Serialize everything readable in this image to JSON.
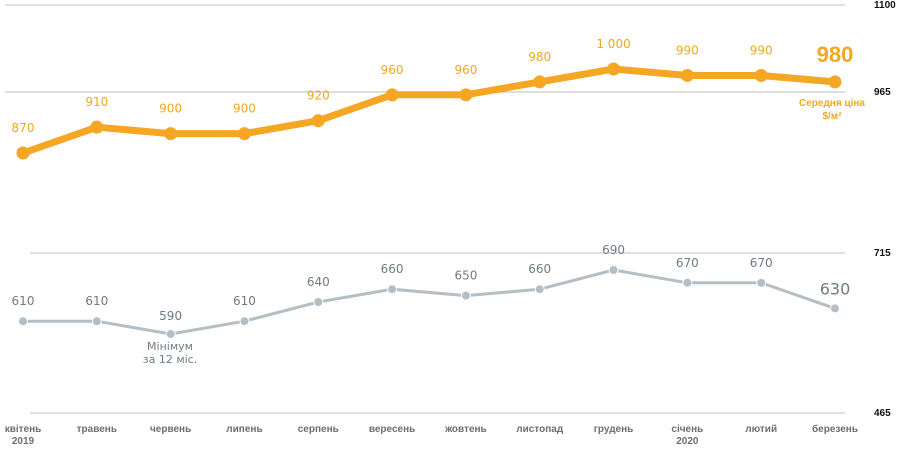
{
  "chart_data": {
    "type": "line",
    "categories": [
      "квітень",
      "травень",
      "червень",
      "липень",
      "серпень",
      "вересень",
      "жовтень",
      "листопад",
      "грудень",
      "січень",
      "лютий",
      "березень"
    ],
    "category_years": [
      "2019",
      "",
      "",
      "",
      "",
      "",
      "",
      "",
      "",
      "2020",
      "",
      ""
    ],
    "series": [
      {
        "values": [
          870,
          910,
          900,
          900,
          920,
          960,
          960,
          980,
          1000,
          990,
          990,
          980
        ],
        "value_labels": [
          "870",
          "910",
          "900",
          "900",
          "920",
          "960",
          "960",
          "980",
          "1 000",
          "990",
          "990",
          "980"
        ],
        "color": "#f5a623",
        "note": "Середня ціна $/м²"
      },
      {
        "values": [
          610,
          610,
          590,
          610,
          640,
          660,
          650,
          660,
          690,
          670,
          670,
          630
        ],
        "value_labels": [
          "610",
          "610",
          "590",
          "610",
          "640",
          "660",
          "650",
          "660",
          "690",
          "670",
          "670",
          "630"
        ],
        "color": "#b4bec4",
        "note": "Мінімум за 12 міс."
      }
    ],
    "y_ticks": [
      "1100",
      "965",
      "715",
      "465"
    ],
    "grid": true
  }
}
